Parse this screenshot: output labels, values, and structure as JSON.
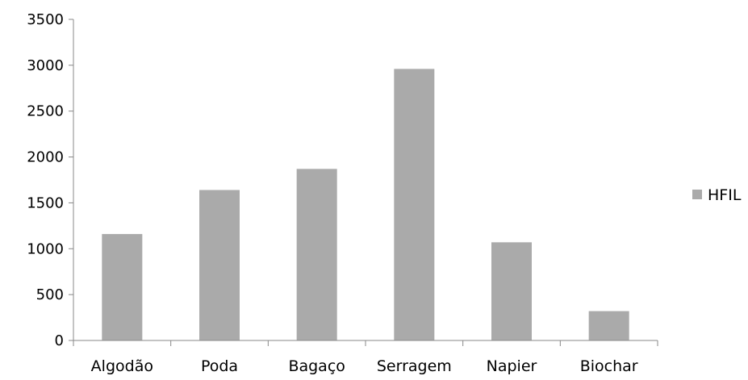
{
  "chart_data": {
    "type": "bar",
    "categories": [
      "Algodão",
      "Poda",
      "Bagaço",
      "Serragem",
      "Napier",
      "Biochar"
    ],
    "series": [
      {
        "name": "HFIL",
        "values": [
          1160,
          1640,
          1870,
          2960,
          1070,
          320
        ],
        "color": "#aaaaaa"
      }
    ],
    "ylim": [
      0,
      3500
    ],
    "yticks": [
      "0",
      "500",
      "1000",
      "1500",
      "2000",
      "2500",
      "3000",
      "3500"
    ],
    "grid": false,
    "legend_position": "right",
    "axis_color": "#888888"
  }
}
